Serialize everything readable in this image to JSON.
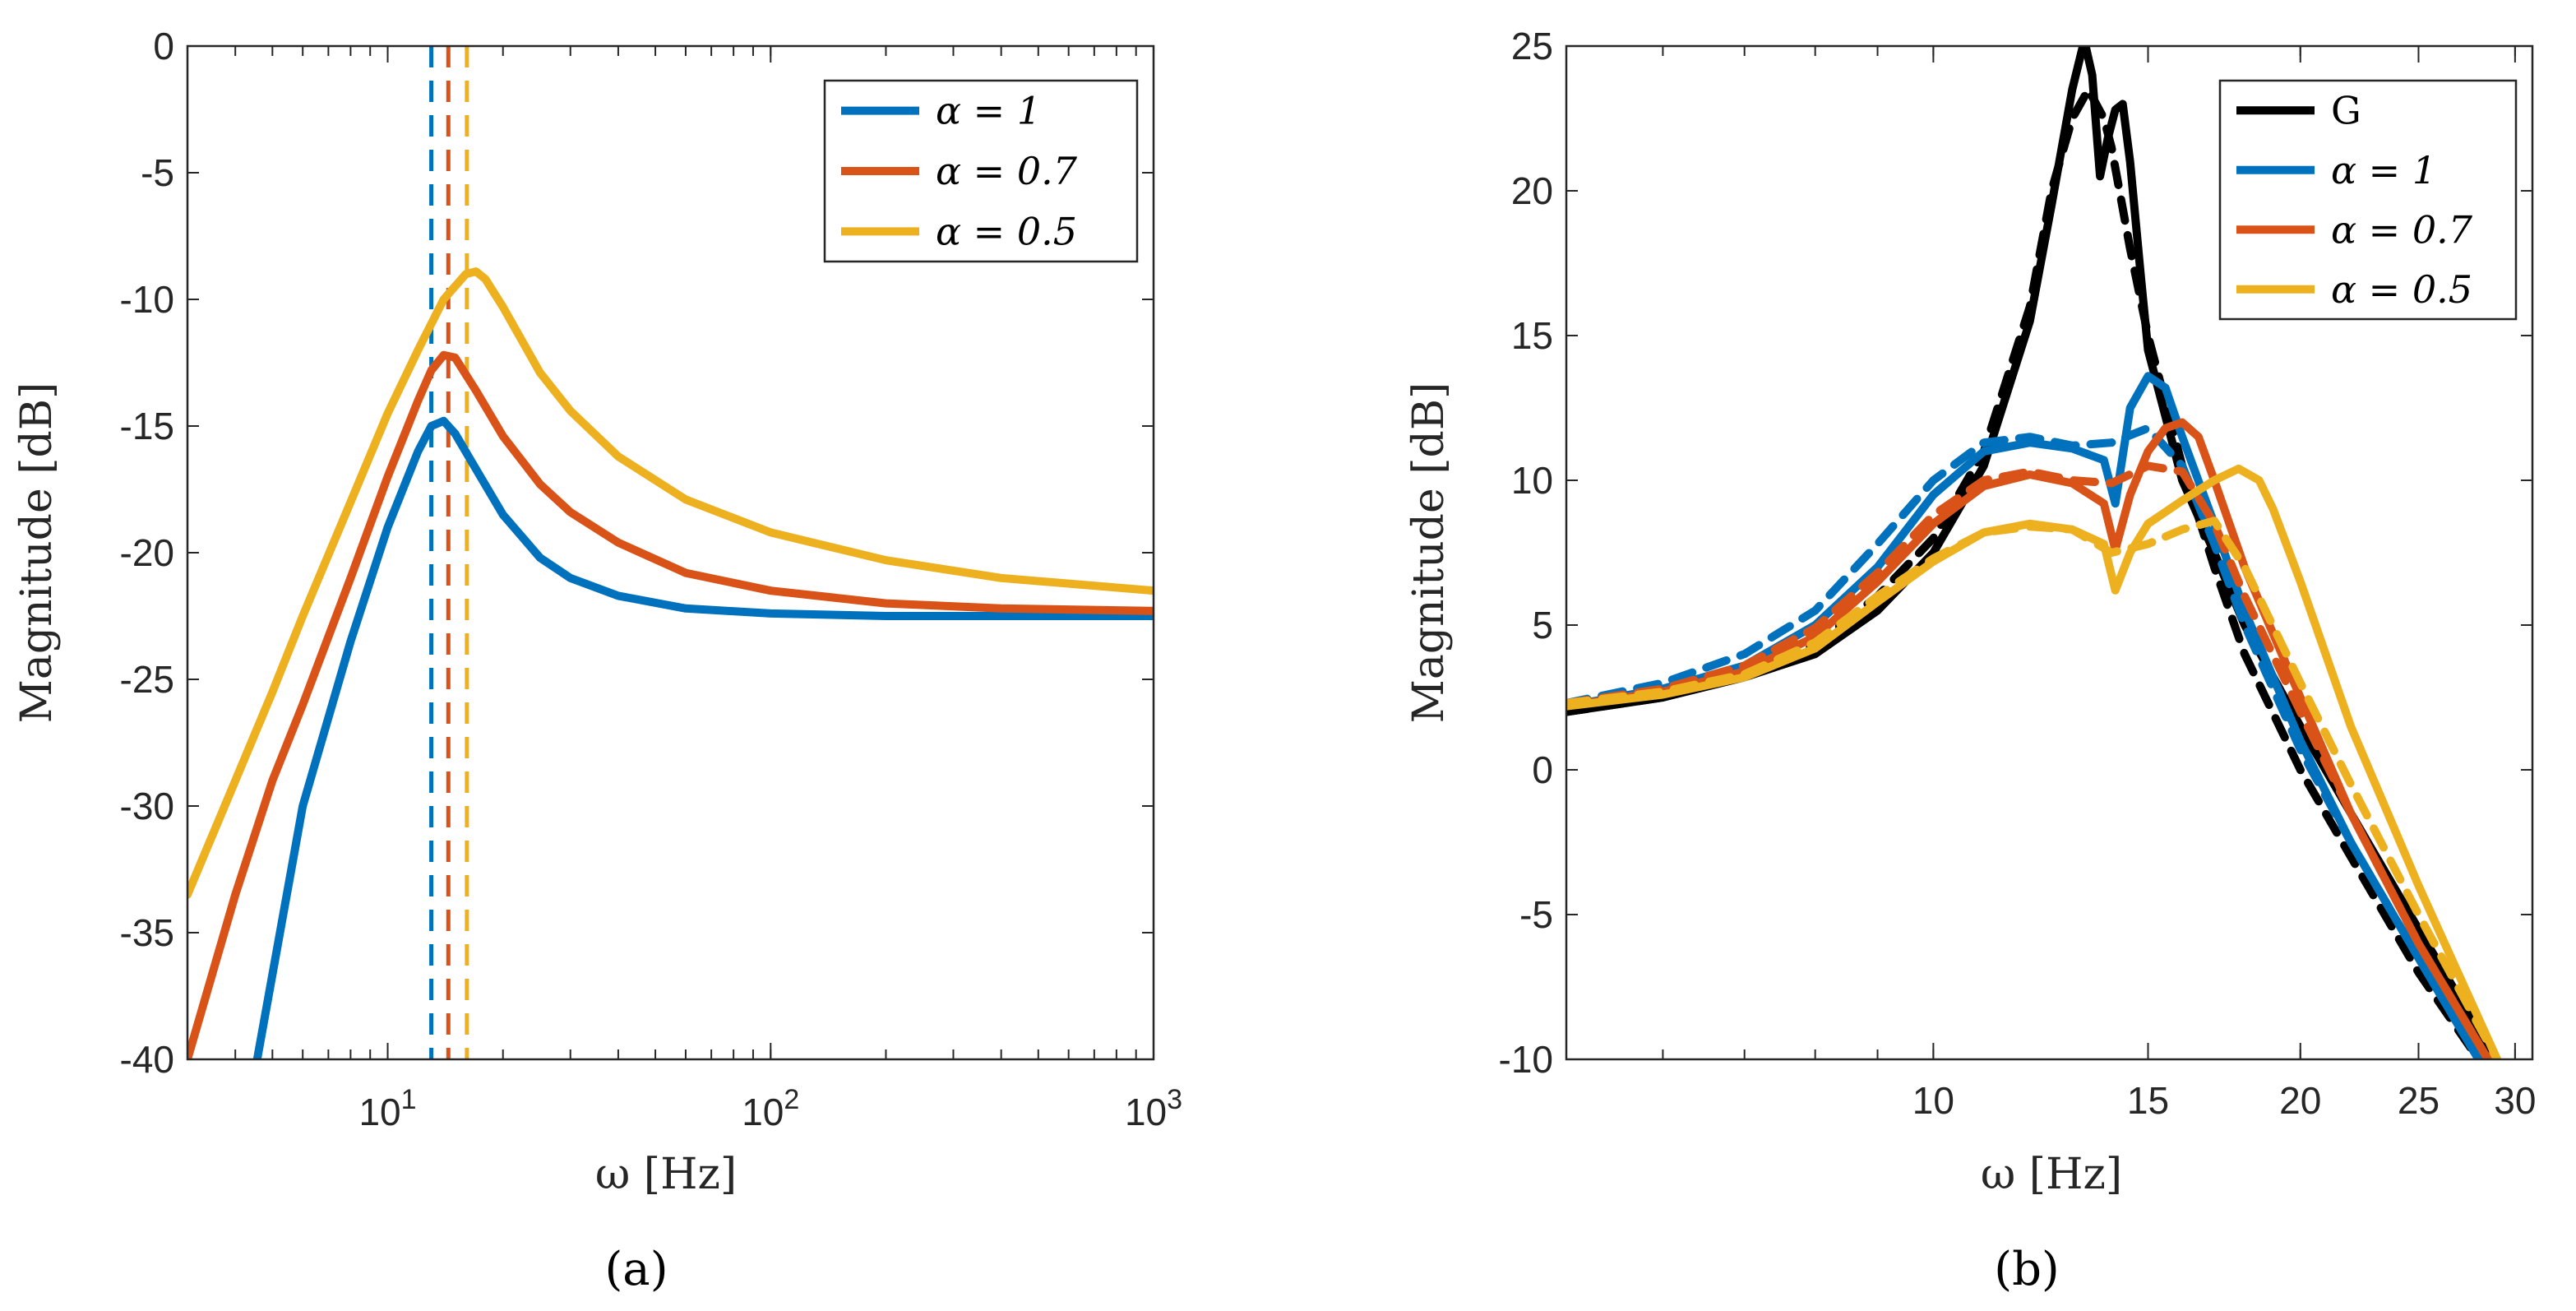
{
  "chart_data": [
    {
      "type": "line",
      "xscale": "log",
      "xlim": [
        3,
        1000
      ],
      "ylim": [
        -40,
        0
      ],
      "xlabel": "ω [Hz]",
      "ylabel": "Magnitude [dB]",
      "xticks": [
        {
          "v": 10,
          "base": "10",
          "exp": "1"
        },
        {
          "v": 100,
          "base": "10",
          "exp": "2"
        },
        {
          "v": 1000,
          "base": "10",
          "exp": "3"
        }
      ],
      "yticks": [
        0,
        -5,
        -10,
        -15,
        -20,
        -25,
        -30,
        -35,
        -40
      ],
      "legend_position": "top-right",
      "caption": "(a)",
      "series": [
        {
          "name": "α = 1",
          "color": "#0072BD",
          "x": [
            4.5,
            6,
            8,
            10,
            12,
            13,
            14,
            15,
            17,
            20,
            25,
            30,
            40,
            60,
            100,
            200,
            1000
          ],
          "y": [
            -40.5,
            -30,
            -23.5,
            -19,
            -16,
            -15,
            -14.8,
            -15.3,
            -16.7,
            -18.5,
            -20.2,
            -21,
            -21.7,
            -22.2,
            -22.4,
            -22.5,
            -22.5
          ]
        },
        {
          "name": "α = 0.7",
          "color": "#D95319",
          "x": [
            3,
            4,
            5,
            6,
            8,
            10,
            12,
            13,
            14,
            15,
            17,
            20,
            25,
            30,
            40,
            60,
            100,
            200,
            400,
            1000
          ],
          "y": [
            -40,
            -33.5,
            -29,
            -26,
            -21,
            -17,
            -14,
            -12.8,
            -12.2,
            -12.3,
            -13.6,
            -15.4,
            -17.3,
            -18.4,
            -19.6,
            -20.8,
            -21.5,
            -22,
            -22.2,
            -22.3
          ]
        },
        {
          "name": "α = 0.5",
          "color": "#EDB120",
          "x": [
            3,
            4,
            5,
            6,
            8,
            10,
            12,
            14,
            16,
            17,
            18,
            20,
            25,
            30,
            40,
            60,
            100,
            200,
            400,
            1000
          ],
          "y": [
            -33.5,
            -29,
            -25.5,
            -22.5,
            -18,
            -14.5,
            -12,
            -10,
            -9,
            -8.9,
            -9.2,
            -10.3,
            -12.9,
            -14.4,
            -16.2,
            -17.9,
            -19.2,
            -20.3,
            -21,
            -21.5
          ]
        }
      ],
      "vlines": [
        {
          "x": 13,
          "color": "#0072BD"
        },
        {
          "x": 14.4,
          "color": "#D95319"
        },
        {
          "x": 16.1,
          "color": "#EDB120"
        }
      ]
    },
    {
      "type": "line",
      "xscale": "log",
      "xlim": [
        5,
        31
      ],
      "ylim": [
        -10,
        25
      ],
      "xlabel": "ω [Hz]",
      "ylabel": "Magnitude [dB]",
      "xticks": [
        10,
        15,
        20,
        25,
        30
      ],
      "yticks": [
        25,
        20,
        15,
        10,
        5,
        0,
        -5,
        -10
      ],
      "legend_position": "top-right",
      "caption": "(b)",
      "series": [
        {
          "name": "G",
          "color": "#000000",
          "style": "solid",
          "x": [
            5,
            6,
            7,
            8,
            9,
            10,
            11,
            12,
            12.5,
            13,
            13.3,
            13.5,
            13.7,
            13.9,
            14.1,
            14.3,
            14.5,
            14.8,
            15,
            16,
            17,
            18,
            20,
            22,
            25,
            28,
            30
          ],
          "y": [
            2,
            2.5,
            3.2,
            4,
            5.5,
            7.5,
            10.5,
            15.5,
            19.5,
            23.5,
            25.2,
            24,
            20.5,
            21.8,
            22.8,
            23,
            21,
            17,
            14.5,
            10,
            7.5,
            5,
            1.5,
            -1.5,
            -5.5,
            -9,
            -11
          ]
        },
        {
          "name": "",
          "color": "#000000",
          "style": "dashed",
          "x": [
            5,
            6,
            7,
            8,
            9,
            10,
            11,
            12,
            12.5,
            13,
            13.4,
            13.8,
            14,
            14.5,
            15,
            16,
            17,
            18,
            20,
            22,
            25,
            28,
            30
          ],
          "y": [
            2,
            2.5,
            3.3,
            4.3,
            6,
            8,
            11,
            16,
            20,
            22.5,
            23.5,
            22.5,
            21.5,
            18,
            15,
            10.5,
            7,
            4,
            0,
            -3,
            -7,
            -10,
            -11
          ]
        },
        {
          "name": "α = 1",
          "color": "#0072BD",
          "style": "solid",
          "x": [
            5,
            6,
            7,
            8,
            9,
            10,
            11,
            12,
            13,
            13.8,
            14.1,
            14.5,
            15,
            15.5,
            16,
            17,
            18,
            20,
            22,
            25,
            28
          ],
          "y": [
            2.2,
            2.8,
            3.6,
            5,
            7,
            9.5,
            11,
            11.3,
            11.1,
            10.7,
            9.2,
            12.5,
            13.6,
            13.2,
            11.5,
            8.5,
            5.5,
            1,
            -2.5,
            -6.5,
            -10
          ]
        },
        {
          "name": "",
          "color": "#0072BD",
          "style": "dashed",
          "x": [
            5,
            6,
            7,
            8,
            9,
            10,
            11,
            12,
            13,
            14,
            15,
            16,
            17,
            18,
            20,
            22,
            25,
            28
          ],
          "y": [
            2.3,
            3,
            4,
            5.5,
            7.8,
            10,
            11.3,
            11.5,
            11.2,
            11.3,
            11.8,
            10.5,
            7.8,
            5,
            0.7,
            -2.5,
            -6.5,
            -10
          ]
        },
        {
          "name": "α = 0.7",
          "color": "#D95319",
          "style": "solid",
          "x": [
            5,
            6,
            7,
            8,
            9,
            10,
            11,
            12,
            13,
            13.8,
            14.1,
            14.5,
            15,
            15.5,
            16,
            16.5,
            17,
            18,
            20,
            22,
            25,
            28.5
          ],
          "y": [
            2.2,
            2.7,
            3.4,
            4.6,
            6.5,
            8.5,
            9.8,
            10.2,
            9.9,
            9.2,
            7.6,
            9.5,
            11,
            11.8,
            12,
            11.5,
            10,
            7,
            2.5,
            -1.5,
            -6,
            -10
          ]
        },
        {
          "name": "",
          "color": "#D95319",
          "style": "dashed",
          "x": [
            5,
            6,
            7,
            8,
            9,
            10,
            11,
            12,
            13,
            14,
            15,
            16,
            17,
            18,
            20,
            22,
            25,
            28.5
          ],
          "y": [
            2.3,
            2.8,
            3.6,
            4.9,
            6.8,
            8.8,
            10,
            10.3,
            10,
            9.9,
            10.5,
            10.3,
            8.5,
            6,
            2,
            -1.5,
            -6,
            -10
          ]
        },
        {
          "name": "α = 0.5",
          "color": "#EDB120",
          "style": "solid",
          "x": [
            5,
            6,
            7,
            8,
            9,
            10,
            11,
            12,
            13,
            13.8,
            14.1,
            14.5,
            15,
            16,
            17,
            17.8,
            18.5,
            19,
            20,
            22,
            25,
            29
          ],
          "y": [
            2.2,
            2.6,
            3.2,
            4.2,
            5.8,
            7.2,
            8.2,
            8.5,
            8.3,
            7.8,
            6.2,
            7.5,
            8.5,
            9.3,
            10,
            10.4,
            10,
            9,
            6.5,
            1.5,
            -4,
            -10
          ]
        },
        {
          "name": "",
          "color": "#EDB120",
          "style": "dashed",
          "x": [
            5,
            6,
            7,
            8,
            9,
            10,
            11,
            12,
            13,
            14,
            15,
            16,
            17,
            18,
            20,
            22,
            25,
            29
          ],
          "y": [
            2.3,
            2.7,
            3.3,
            4.4,
            6,
            7.3,
            8.2,
            8.4,
            8.3,
            7.5,
            7.8,
            8.3,
            8.6,
            7,
            3,
            -0.5,
            -5,
            -10
          ]
        }
      ]
    }
  ]
}
